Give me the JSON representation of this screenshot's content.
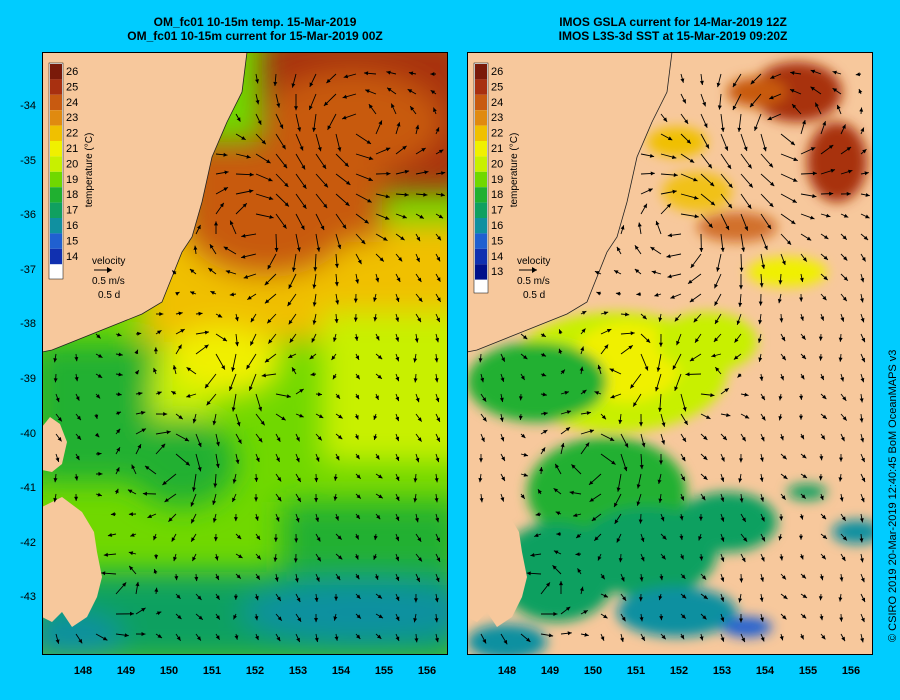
{
  "left_panel": {
    "title_line1": "OM_fc01 10-15m temp. 15-Mar-2019",
    "title_line2": "OM_fc01 10-15m current for 15-Mar-2019 00Z",
    "colorbar_labels": [
      "26",
      "25",
      "24",
      "23",
      "22",
      "21",
      "20",
      "19",
      "18",
      "17",
      "16",
      "15",
      "14"
    ],
    "colorbar_title": "temperature (°C)",
    "velocity_label": "velocity",
    "velocity_scale": "0.5 m/s",
    "velocity_time": "0.5 d"
  },
  "right_panel": {
    "title_line1": "IMOS GSLA current for 14-Mar-2019 12Z",
    "title_line2": "IMOS L3S-3d SST at 15-Mar-2019 09:20Z",
    "colorbar_labels": [
      "26",
      "25",
      "24",
      "23",
      "22",
      "21",
      "20",
      "19",
      "18",
      "17",
      "16",
      "15",
      "14",
      "13"
    ],
    "colorbar_title": "temperature (°C)",
    "velocity_label": "velocity",
    "velocity_scale": "0.5 m/s",
    "velocity_time": "0.5 d"
  },
  "latitude_labels": [
    "-34",
    "-35",
    "-36",
    "-37",
    "-38",
    "-39",
    "-40",
    "-41",
    "-42",
    "-43"
  ],
  "longitude_labels": [
    "148",
    "149",
    "150",
    "151",
    "152",
    "153",
    "154",
    "155",
    "156"
  ],
  "credit": "© CSIRO 2019   20-Mar-2019 12:40:45 BoM OceanMAPS v3",
  "colors": {
    "background": "#00ccff",
    "land": "#f7c89c",
    "scale": [
      "#7a1a0a",
      "#a83010",
      "#c85a10",
      "#e08a10",
      "#f0c000",
      "#f0f000",
      "#c8f000",
      "#70d800",
      "#20b030",
      "#10a060",
      "#1090a0",
      "#2060d0",
      "#1030b0",
      "#00108a"
    ]
  }
}
